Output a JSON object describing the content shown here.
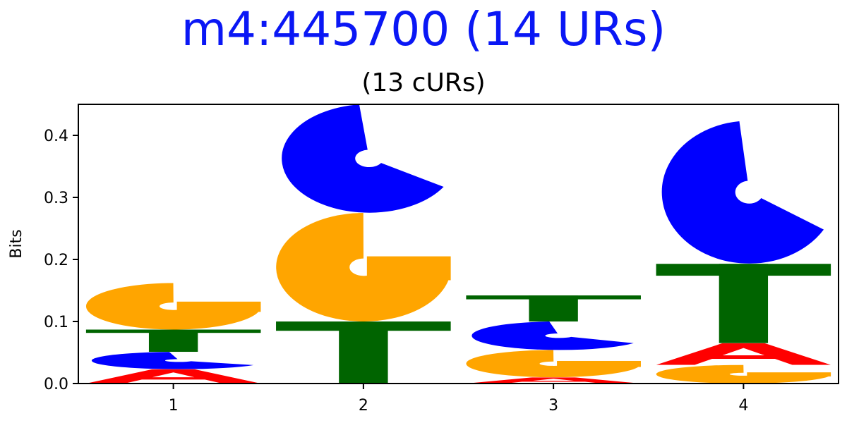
{
  "chart_data": {
    "type": "sequence-logo",
    "title": "m4:445700 (14 URs)",
    "subtitle": "(13 cURs)",
    "xlabel": "",
    "ylabel": "Bits",
    "ylim": [
      0,
      0.45
    ],
    "yticks": [
      "0.0",
      "0.1",
      "0.2",
      "0.3",
      "0.4"
    ],
    "grid": false,
    "colors": {
      "A": "#ff0000",
      "C": "#0000ff",
      "G": "#ffa500",
      "T": "#006400"
    },
    "positions": [
      {
        "label": "1",
        "stack": [
          {
            "base": "A",
            "bits": 0.023
          },
          {
            "base": "C",
            "bits": 0.028
          },
          {
            "base": "T",
            "bits": 0.036
          },
          {
            "base": "G",
            "bits": 0.075
          }
        ]
      },
      {
        "label": "2",
        "stack": [
          {
            "base": "T",
            "bits": 0.1
          },
          {
            "base": "G",
            "bits": 0.175
          },
          {
            "base": "C",
            "bits": 0.175
          }
        ]
      },
      {
        "label": "3",
        "stack": [
          {
            "base": "A",
            "bits": 0.01
          },
          {
            "base": "G",
            "bits": 0.044
          },
          {
            "base": "C",
            "bits": 0.046
          },
          {
            "base": "T",
            "bits": 0.042
          }
        ]
      },
      {
        "label": "4",
        "stack": [
          {
            "base": "G",
            "bits": 0.03
          },
          {
            "base": "A",
            "bits": 0.035
          },
          {
            "base": "T",
            "bits": 0.128
          },
          {
            "base": "C",
            "bits": 0.23
          }
        ]
      }
    ]
  }
}
